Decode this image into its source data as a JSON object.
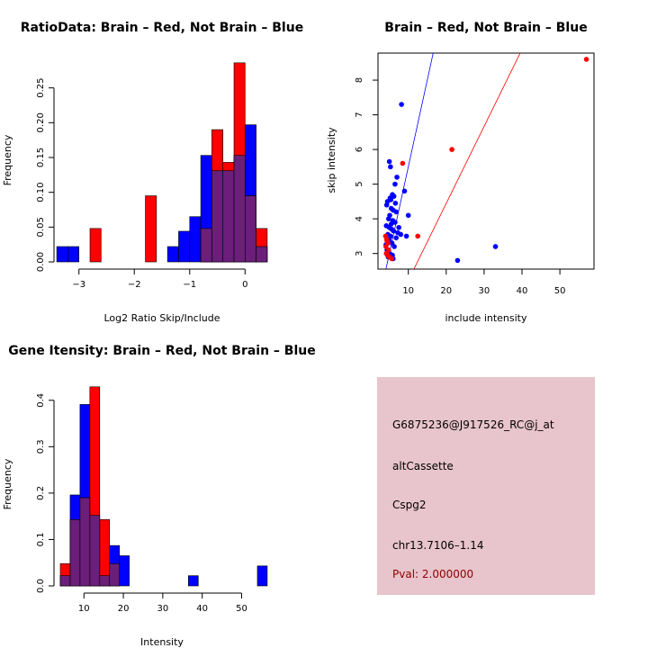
{
  "colors": {
    "red": "#ff0000",
    "blue": "#0000ff",
    "overlap": "#6b1e7a",
    "info_bg": "#e8c4cc",
    "pval": "#8b0000"
  },
  "chart_data": [
    {
      "type": "histogram",
      "title": "RatioData: Brain – Red, Not Brain – Blue",
      "xlabel": "Log2 Ratio Skip/Include",
      "ylabel": "Frequency",
      "xlim": [
        -3.45,
        0.45
      ],
      "ylim": [
        0,
        0.3
      ],
      "xticks": [
        -3,
        -2,
        -1,
        0
      ],
      "xtick_labels": [
        "−3",
        "−2",
        "−1",
        "0"
      ],
      "yticks": [
        0.0,
        0.05,
        0.1,
        0.15,
        0.2,
        0.25
      ],
      "ytick_labels": [
        "0.00",
        "0.05",
        "0.10",
        "0.15",
        "0.20",
        "0.25"
      ],
      "blue": {
        "name": "Not Brain",
        "breaks": [
          -3.4,
          -3.2,
          -3.0,
          -2.8,
          -2.6,
          -2.4,
          -2.2,
          -2.0,
          -1.8,
          -1.6,
          -1.4,
          -1.2,
          -1.0,
          -0.8,
          -0.6,
          -0.4,
          -0.2,
          0.0,
          0.2,
          0.4
        ],
        "values": [
          0.022,
          0.022,
          0,
          0,
          0,
          0,
          0,
          0,
          0,
          0,
          0.022,
          0.044,
          0.065,
          0.153,
          0.131,
          0.131,
          0.153,
          0.197,
          0.022,
          0.065
        ]
      },
      "red": {
        "name": "Brain",
        "breaks": [
          -3.4,
          -3.2,
          -3.0,
          -2.8,
          -2.6,
          -2.4,
          -2.2,
          -2.0,
          -1.8,
          -1.6,
          -1.4,
          -1.2,
          -1.0,
          -0.8,
          -0.6,
          -0.4,
          -0.2,
          0.0,
          0.2,
          0.4
        ],
        "values": [
          0,
          0,
          0,
          0.048,
          0,
          0,
          0,
          0,
          0.095,
          0,
          0,
          0,
          0,
          0.048,
          0.19,
          0.143,
          0.286,
          0.095,
          0.048,
          0
        ]
      }
    },
    {
      "type": "scatter",
      "title": "Brain – Red, Not Brain – Blue",
      "xlabel": "include intensity",
      "ylabel": "skip intensity",
      "xlim": [
        2.0,
        59.0
      ],
      "ylim": [
        2.55,
        8.78
      ],
      "xticks": [
        10,
        20,
        30,
        40,
        50
      ],
      "xtick_labels": [
        "10",
        "20",
        "30",
        "40",
        "50"
      ],
      "yticks": [
        3,
        4,
        5,
        6,
        7,
        8
      ],
      "ytick_labels": [
        "3",
        "4",
        "5",
        "6",
        "7",
        "8"
      ],
      "lines": [
        {
          "color": "blue",
          "slope": 0.5,
          "intercept": 0.5
        },
        {
          "color": "red",
          "slope": 0.2222,
          "intercept": 0.0
        }
      ],
      "blue_points": [
        [
          8.2,
          7.3
        ],
        [
          5.0,
          5.65
        ],
        [
          5.3,
          5.5
        ],
        [
          7.0,
          5.2
        ],
        [
          6.5,
          5.0
        ],
        [
          4.5,
          4.5
        ],
        [
          5.2,
          4.6
        ],
        [
          5.8,
          4.7
        ],
        [
          6.2,
          4.65
        ],
        [
          9.0,
          4.8
        ],
        [
          4.3,
          4.4
        ],
        [
          5.5,
          4.3
        ],
        [
          6.0,
          4.25
        ],
        [
          6.8,
          4.2
        ],
        [
          5.1,
          4.1
        ],
        [
          4.8,
          4.0
        ],
        [
          5.9,
          3.95
        ],
        [
          6.5,
          3.9
        ],
        [
          10.0,
          4.1
        ],
        [
          4.2,
          3.8
        ],
        [
          5.0,
          3.75
        ],
        [
          5.6,
          3.7
        ],
        [
          6.1,
          3.65
        ],
        [
          7.2,
          3.6
        ],
        [
          4.6,
          3.55
        ],
        [
          5.3,
          3.5
        ],
        [
          6.8,
          3.45
        ],
        [
          8.0,
          3.55
        ],
        [
          9.5,
          3.5
        ],
        [
          4.9,
          3.4
        ],
        [
          5.7,
          3.3
        ],
        [
          6.3,
          3.2
        ],
        [
          4.4,
          3.1
        ],
        [
          5.1,
          3.0
        ],
        [
          5.8,
          2.95
        ],
        [
          4.7,
          2.9
        ],
        [
          6.0,
          2.85
        ],
        [
          33.0,
          3.2
        ],
        [
          23.0,
          2.8
        ],
        [
          5.4,
          4.55
        ],
        [
          6.6,
          4.45
        ],
        [
          7.5,
          3.75
        ],
        [
          4.1,
          3.25
        ],
        [
          5.5,
          3.85
        ]
      ],
      "red_points": [
        [
          57.0,
          8.6
        ],
        [
          21.5,
          6.0
        ],
        [
          8.5,
          5.6
        ],
        [
          12.5,
          3.5
        ],
        [
          4.0,
          3.5
        ],
        [
          4.3,
          3.4
        ],
        [
          4.6,
          3.3
        ],
        [
          4.1,
          3.2
        ],
        [
          4.8,
          3.1
        ],
        [
          4.2,
          3.0
        ],
        [
          4.5,
          2.95
        ],
        [
          5.0,
          2.9
        ],
        [
          5.6,
          2.85
        ],
        [
          4.4,
          3.35
        ]
      ]
    },
    {
      "type": "histogram",
      "title": "Gene Itensity: Brain – Red, Not Brain – Blue",
      "xlabel": "Intensity",
      "ylabel": "Frequency",
      "xlim": [
        2.4,
        57.2
      ],
      "ylim": [
        0,
        0.45
      ],
      "xticks": [
        10,
        20,
        30,
        40,
        50
      ],
      "xtick_labels": [
        "10",
        "20",
        "30",
        "40",
        "50"
      ],
      "yticks": [
        0.0,
        0.1,
        0.2,
        0.3,
        0.4
      ],
      "ytick_labels": [
        "0.0",
        "0.1",
        "0.2",
        "0.3",
        "0.4"
      ],
      "blue": {
        "name": "Not Brain",
        "breaks": [
          4,
          6.5,
          9,
          11.5,
          14,
          16.5,
          19,
          21.5,
          24,
          26.5,
          29,
          31.5,
          34,
          36.5,
          39,
          41.5,
          44,
          46.5,
          49,
          51.5,
          54,
          56.5
        ],
        "values": [
          0.022,
          0.196,
          0.391,
          0.152,
          0.022,
          0.087,
          0.065,
          0,
          0,
          0,
          0,
          0,
          0,
          0.022,
          0,
          0,
          0,
          0,
          0,
          0,
          0.043
        ]
      },
      "red": {
        "name": "Brain",
        "breaks": [
          4,
          6.5,
          9,
          11.5,
          14,
          16.5,
          19,
          21.5,
          24,
          26.5,
          29,
          31.5,
          34,
          36.5,
          39,
          41.5,
          44,
          46.5,
          49,
          51.5,
          54,
          56.5
        ],
        "values": [
          0.048,
          0.143,
          0.19,
          0.429,
          0.143,
          0.048,
          0,
          0,
          0,
          0,
          0,
          0,
          0,
          0,
          0,
          0,
          0,
          0,
          0,
          0,
          0
        ]
      }
    }
  ],
  "info_panel": {
    "probe": "G6875236@J917526_RC@j_at",
    "type": "altCassette",
    "gene": "Cspg2",
    "location": "chr13.7106–1.14",
    "pval": "Pval: 2.000000"
  }
}
